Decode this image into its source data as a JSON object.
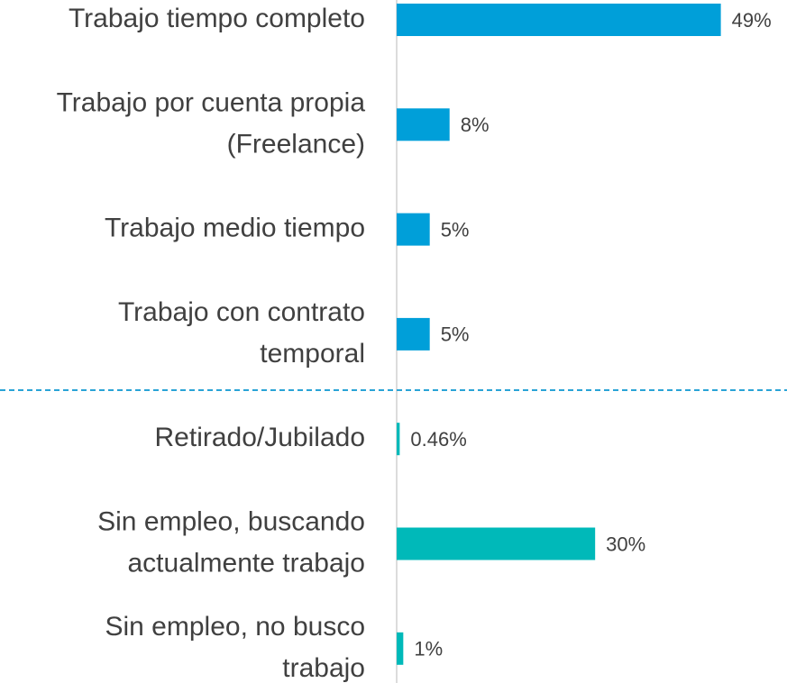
{
  "chart_data": {
    "type": "bar",
    "orientation": "horizontal",
    "categories": [
      "Trabajo tiempo completo",
      "Trabajo por cuenta propia (Freelance)",
      "Trabajo medio tiempo",
      "Trabajo con contrato temporal",
      "Retirado/Jubilado",
      "Sin empleo, buscando actualmente trabajo",
      "Sin empleo, no busco trabajo"
    ],
    "values": [
      49,
      8,
      5,
      5,
      0.46,
      30,
      1
    ],
    "value_labels": [
      "49%",
      "8%",
      "5%",
      "5%",
      "0.46%",
      "30%",
      "1%"
    ],
    "colors": [
      "#009fd9",
      "#009fd9",
      "#009fd9",
      "#009fd9",
      "#00b9b9",
      "#00b9b9",
      "#00b9b9"
    ],
    "xlim": [
      0,
      59
    ]
  }
}
